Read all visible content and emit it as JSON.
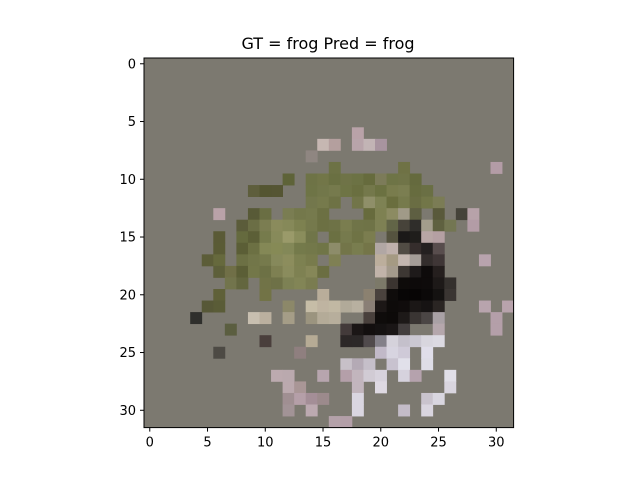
{
  "figure": {
    "title": "GT = frog Pred = frog"
  },
  "chart_data": {
    "type": "heatmap",
    "title": "GT = frog Pred = frog",
    "xlabel": "",
    "ylabel": "",
    "xlim": [
      -0.5,
      31.5
    ],
    "ylim": [
      31.5,
      -0.5
    ],
    "x_ticks": [
      0,
      5,
      10,
      15,
      20,
      25,
      30
    ],
    "y_ticks": [
      0,
      5,
      10,
      15,
      20,
      25,
      30
    ],
    "background_color": "#7c7970",
    "pixels": [
      [
        6,
        18,
        "#b9a2a8"
      ],
      [
        7,
        15,
        "#c6b7b2"
      ],
      [
        7,
        16,
        "#b49f9e"
      ],
      [
        7,
        18,
        "#b8a4aa"
      ],
      [
        7,
        19,
        "#c2b4b5"
      ],
      [
        7,
        20,
        "#a8949f"
      ],
      [
        8,
        14,
        "#8f8681"
      ],
      [
        9,
        16,
        "#6d7245"
      ],
      [
        9,
        22,
        "#6f7245"
      ],
      [
        9,
        30,
        "#b39ca6"
      ],
      [
        10,
        12,
        "#5e6338"
      ],
      [
        10,
        14,
        "#6e7346"
      ],
      [
        10,
        15,
        "#727648"
      ],
      [
        10,
        16,
        "#6a7042"
      ],
      [
        10,
        17,
        "#6f7347"
      ],
      [
        10,
        18,
        "#6c7244"
      ],
      [
        10,
        19,
        "#666b3d"
      ],
      [
        10,
        20,
        "#7c7b59"
      ],
      [
        10,
        21,
        "#6e7446"
      ],
      [
        10,
        22,
        "#707448"
      ],
      [
        10,
        23,
        "#656a3e"
      ],
      [
        11,
        9,
        "#5e5e3c"
      ],
      [
        11,
        10,
        "#545531"
      ],
      [
        11,
        11,
        "#555533"
      ],
      [
        11,
        14,
        "#6e7446"
      ],
      [
        11,
        15,
        "#72774a"
      ],
      [
        11,
        16,
        "#767a4d"
      ],
      [
        11,
        17,
        "#6e7445"
      ],
      [
        11,
        18,
        "#6a6f40"
      ],
      [
        11,
        19,
        "#74784b"
      ],
      [
        11,
        20,
        "#6b7141"
      ],
      [
        11,
        21,
        "#797c4d"
      ],
      [
        11,
        22,
        "#7b7e51"
      ],
      [
        11,
        23,
        "#676c3f"
      ],
      [
        11,
        24,
        "#6a6f44"
      ],
      [
        12,
        14,
        "#73774c"
      ],
      [
        12,
        15,
        "#767a4c"
      ],
      [
        12,
        16,
        "#6e7245"
      ],
      [
        12,
        18,
        "#727549"
      ],
      [
        12,
        19,
        "#8f8f69"
      ],
      [
        12,
        20,
        "#7e8254"
      ],
      [
        12,
        21,
        "#6a6e3e"
      ],
      [
        12,
        22,
        "#767a4c"
      ],
      [
        12,
        23,
        "#6a6d43"
      ],
      [
        12,
        24,
        "#727648"
      ],
      [
        12,
        25,
        "#7b7c55"
      ],
      [
        13,
        6,
        "#b9a2a8"
      ],
      [
        13,
        9,
        "#585a37"
      ],
      [
        13,
        10,
        "#6a6e43"
      ],
      [
        13,
        12,
        "#7a7d52"
      ],
      [
        13,
        13,
        "#74784b"
      ],
      [
        13,
        14,
        "#767a4d"
      ],
      [
        13,
        15,
        "#6c7043"
      ],
      [
        13,
        19,
        "#676b3d"
      ],
      [
        13,
        20,
        "#7e8152"
      ],
      [
        13,
        21,
        "#8c8b62"
      ],
      [
        13,
        22,
        "#a09a88"
      ],
      [
        13,
        23,
        "#5e5f42"
      ],
      [
        13,
        25,
        "#59593b"
      ],
      [
        13,
        27,
        "#45433a"
      ],
      [
        13,
        28,
        "#b7a2a9"
      ],
      [
        14,
        8,
        "#5b5c3a"
      ],
      [
        14,
        9,
        "#6b6e45"
      ],
      [
        14,
        10,
        "#7b7d51"
      ],
      [
        14,
        11,
        "#8a8b5c"
      ],
      [
        14,
        12,
        "#868959"
      ],
      [
        14,
        13,
        "#7d8150"
      ],
      [
        14,
        14,
        "#75794c"
      ],
      [
        14,
        15,
        "#6c7043"
      ],
      [
        14,
        16,
        "#6e7246"
      ],
      [
        14,
        17,
        "#7a7d4f"
      ],
      [
        14,
        18,
        "#707448"
      ],
      [
        14,
        19,
        "#6f7347"
      ],
      [
        14,
        20,
        "#7e8154"
      ],
      [
        14,
        21,
        "#626547"
      ],
      [
        14,
        22,
        "#47433a"
      ],
      [
        14,
        23,
        "#2f2d2a"
      ],
      [
        14,
        24,
        "#a39d8c"
      ],
      [
        14,
        25,
        "#5f6140"
      ],
      [
        14,
        26,
        "#737652"
      ],
      [
        14,
        28,
        "#b39ca6"
      ],
      [
        15,
        6,
        "#5a5a36"
      ],
      [
        15,
        8,
        "#656a3e"
      ],
      [
        15,
        9,
        "#5c5f37"
      ],
      [
        15,
        10,
        "#767b4c"
      ],
      [
        15,
        11,
        "#878a5a"
      ],
      [
        15,
        12,
        "#9a9a6a"
      ],
      [
        15,
        13,
        "#8a8d5c"
      ],
      [
        15,
        14,
        "#707549"
      ],
      [
        15,
        16,
        "#6b7042"
      ],
      [
        15,
        17,
        "#767a4d"
      ],
      [
        15,
        18,
        "#6f7345"
      ],
      [
        15,
        19,
        "#7b7d4f"
      ],
      [
        15,
        21,
        "#55533f"
      ],
      [
        15,
        22,
        "#1b1918"
      ],
      [
        15,
        23,
        "#1f1d1b"
      ],
      [
        15,
        24,
        "#b8a6a5"
      ],
      [
        15,
        25,
        "#b5a0a3"
      ],
      [
        16,
        6,
        "#5a5b35"
      ],
      [
        16,
        8,
        "#5b5e36"
      ],
      [
        16,
        9,
        "#6c7043"
      ],
      [
        16,
        10,
        "#848856"
      ],
      [
        16,
        11,
        "#868a56"
      ],
      [
        16,
        12,
        "#838858"
      ],
      [
        16,
        13,
        "#747a4b"
      ],
      [
        16,
        14,
        "#73784a"
      ],
      [
        16,
        15,
        "#707547"
      ],
      [
        16,
        16,
        "#8d8c6a"
      ],
      [
        16,
        17,
        "#737549"
      ],
      [
        16,
        18,
        "#797d4f"
      ],
      [
        16,
        19,
        "#747548"
      ],
      [
        16,
        20,
        "#b1a7a4"
      ],
      [
        16,
        21,
        "#bfb1ac"
      ],
      [
        16,
        22,
        "#514c44"
      ],
      [
        16,
        23,
        "#352d2c"
      ],
      [
        16,
        24,
        "#242020"
      ],
      [
        16,
        25,
        "#584d4d"
      ],
      [
        17,
        5,
        "#5c5d38"
      ],
      [
        17,
        6,
        "#66693d"
      ],
      [
        17,
        8,
        "#6c7044"
      ],
      [
        17,
        9,
        "#727649"
      ],
      [
        17,
        10,
        "#767a4c"
      ],
      [
        17,
        11,
        "#86895b"
      ],
      [
        17,
        12,
        "#8c8d5d"
      ],
      [
        17,
        13,
        "#7d8151"
      ],
      [
        17,
        14,
        "#787b4c"
      ],
      [
        17,
        16,
        "#7f8054"
      ],
      [
        17,
        20,
        "#bcae9c"
      ],
      [
        17,
        21,
        "#a59a83"
      ],
      [
        17,
        22,
        "#c4b7b0"
      ],
      [
        17,
        23,
        "#a59d98"
      ],
      [
        17,
        24,
        "#332d2c"
      ],
      [
        17,
        25,
        "#3f3636"
      ],
      [
        17,
        29,
        "#b8a3ad"
      ],
      [
        18,
        6,
        "#5d5f3a"
      ],
      [
        18,
        7,
        "#706f47"
      ],
      [
        18,
        8,
        "#5b5e36"
      ],
      [
        18,
        9,
        "#737749"
      ],
      [
        18,
        10,
        "#6d7145"
      ],
      [
        18,
        11,
        "#7e8052"
      ],
      [
        18,
        12,
        "#8a8c5d"
      ],
      [
        18,
        13,
        "#7e8152"
      ],
      [
        18,
        14,
        "#868758"
      ],
      [
        18,
        15,
        "#6b6e42"
      ],
      [
        18,
        20,
        "#c1b3a9"
      ],
      [
        18,
        21,
        "#a49a8c"
      ],
      [
        18,
        22,
        "#3d3733"
      ],
      [
        18,
        23,
        "#1e1a1a"
      ],
      [
        18,
        24,
        "#0e0b0b"
      ],
      [
        18,
        25,
        "#251f1e"
      ],
      [
        19,
        7,
        "#72744c"
      ],
      [
        19,
        8,
        "#63663f"
      ],
      [
        19,
        10,
        "#717347"
      ],
      [
        19,
        11,
        "#6e7147"
      ],
      [
        19,
        12,
        "#7d8154"
      ],
      [
        19,
        13,
        "#828556"
      ],
      [
        19,
        14,
        "#7a7c50"
      ],
      [
        19,
        20,
        "#7c7969"
      ],
      [
        19,
        21,
        "#3b3430"
      ],
      [
        19,
        22,
        "#0e0b0a"
      ],
      [
        19,
        23,
        "#0d0a0a"
      ],
      [
        19,
        24,
        "#0e0b0b"
      ],
      [
        19,
        25,
        "#1d1918"
      ],
      [
        19,
        26,
        "#34302d"
      ],
      [
        20,
        6,
        "#5f6038"
      ],
      [
        20,
        10,
        "#727346"
      ],
      [
        20,
        15,
        "#b9ad9a"
      ],
      [
        20,
        19,
        "#8b8170"
      ],
      [
        20,
        20,
        "#4a423d"
      ],
      [
        20,
        21,
        "#0f0c0b"
      ],
      [
        20,
        22,
        "#080606"
      ],
      [
        20,
        23,
        "#070505"
      ],
      [
        20,
        24,
        "#0b0909"
      ],
      [
        20,
        25,
        "#141211"
      ],
      [
        20,
        26,
        "#3a3532"
      ],
      [
        21,
        5,
        "#575837"
      ],
      [
        21,
        6,
        "#5a5c37"
      ],
      [
        21,
        12,
        "#8c8869"
      ],
      [
        21,
        14,
        "#c6bda7"
      ],
      [
        21,
        15,
        "#bfb4a1"
      ],
      [
        21,
        16,
        "#c1b8a3"
      ],
      [
        21,
        17,
        "#b1aa99"
      ],
      [
        21,
        18,
        "#b8b0a0"
      ],
      [
        21,
        19,
        "#8a7f76"
      ],
      [
        21,
        20,
        "#1c1716"
      ],
      [
        21,
        21,
        "#0e0b0a"
      ],
      [
        21,
        22,
        "#100c0c"
      ],
      [
        21,
        23,
        "#1b1716"
      ],
      [
        21,
        24,
        "#161313"
      ],
      [
        21,
        25,
        "#2a2523"
      ],
      [
        21,
        29,
        "#b8a4ad"
      ],
      [
        21,
        31,
        "#b8a3ac"
      ],
      [
        22,
        4,
        "#2f2f2c"
      ],
      [
        22,
        9,
        "#c8bfb0"
      ],
      [
        22,
        10,
        "#bbb09f"
      ],
      [
        22,
        12,
        "#a59d87"
      ],
      [
        22,
        14,
        "#9b947f"
      ],
      [
        22,
        15,
        "#b4ab98"
      ],
      [
        22,
        16,
        "#b7ae9c"
      ],
      [
        22,
        19,
        "#49403c"
      ],
      [
        22,
        20,
        "#0f0c0b"
      ],
      [
        22,
        21,
        "#0d0a09"
      ],
      [
        22,
        22,
        "#1d1918"
      ],
      [
        22,
        23,
        "#3a3533"
      ],
      [
        22,
        24,
        "#4b4645"
      ],
      [
        22,
        25,
        "#a9a1a5"
      ],
      [
        22,
        30,
        "#b49fa9"
      ],
      [
        23,
        7,
        "#5b5e40"
      ],
      [
        23,
        17,
        "#433a3a"
      ],
      [
        23,
        18,
        "#1b1616"
      ],
      [
        23,
        19,
        "#130f0f"
      ],
      [
        23,
        20,
        "#151212"
      ],
      [
        23,
        21,
        "#1a1616"
      ],
      [
        23,
        22,
        "#433e3e"
      ],
      [
        23,
        25,
        "#b5a7ac"
      ],
      [
        23,
        30,
        "#b49fa9"
      ],
      [
        24,
        10,
        "#4a3f3c"
      ],
      [
        24,
        14,
        "#b6ab95"
      ],
      [
        24,
        17,
        "#2c2727"
      ],
      [
        24,
        18,
        "#2c2828"
      ],
      [
        24,
        19,
        "#504a4c"
      ],
      [
        24,
        20,
        "#838089"
      ],
      [
        24,
        21,
        "#d5d2db"
      ],
      [
        24,
        22,
        "#c4c0cb"
      ],
      [
        24,
        23,
        "#cbc8d2"
      ],
      [
        24,
        24,
        "#d8d6de"
      ],
      [
        24,
        25,
        "#dcdae2"
      ],
      [
        25,
        6,
        "#4d4a44"
      ],
      [
        25,
        13,
        "#8f7f7f"
      ],
      [
        25,
        20,
        "#c1b9c8"
      ],
      [
        25,
        21,
        "#d7d4e0"
      ],
      [
        25,
        22,
        "#cfcad8"
      ],
      [
        25,
        24,
        "#e0deea"
      ],
      [
        26,
        17,
        "#c7c0c8"
      ],
      [
        26,
        18,
        "#b4aab5"
      ],
      [
        26,
        19,
        "#c5bfc9"
      ],
      [
        26,
        21,
        "#c8c2cf"
      ],
      [
        26,
        22,
        "#e1e0ea"
      ],
      [
        26,
        24,
        "#dedde7"
      ],
      [
        27,
        11,
        "#bcaaaf"
      ],
      [
        27,
        12,
        "#baa9ae"
      ],
      [
        27,
        15,
        "#b7a5ae"
      ],
      [
        27,
        17,
        "#b49fa9"
      ],
      [
        27,
        18,
        "#c2b5bd"
      ],
      [
        27,
        19,
        "#d1cbd4"
      ],
      [
        27,
        20,
        "#d7d2dc"
      ],
      [
        27,
        22,
        "#d6d2dd"
      ],
      [
        27,
        23,
        "#b5a2ad"
      ],
      [
        27,
        26,
        "#e1dfe8"
      ],
      [
        28,
        12,
        "#bba9ae"
      ],
      [
        28,
        13,
        "#a99696"
      ],
      [
        28,
        18,
        "#c2b5bd"
      ],
      [
        28,
        20,
        "#ded9e2"
      ],
      [
        28,
        26,
        "#d9d5df"
      ],
      [
        29,
        12,
        "#a08f92"
      ],
      [
        29,
        13,
        "#b59fa8"
      ],
      [
        29,
        14,
        "#a48e97"
      ],
      [
        29,
        15,
        "#9c8a8c"
      ],
      [
        29,
        18,
        "#dad6e1"
      ],
      [
        29,
        24,
        "#c9c3cd"
      ],
      [
        29,
        25,
        "#d9d6e0"
      ],
      [
        30,
        12,
        "#a29396"
      ],
      [
        30,
        14,
        "#bca9b0"
      ],
      [
        30,
        18,
        "#dad6e1"
      ],
      [
        30,
        22,
        "#c4bcc8"
      ],
      [
        30,
        24,
        "#d9d5df"
      ],
      [
        31,
        16,
        "#b4a1a9"
      ],
      [
        31,
        17,
        "#b39fa8"
      ]
    ]
  }
}
